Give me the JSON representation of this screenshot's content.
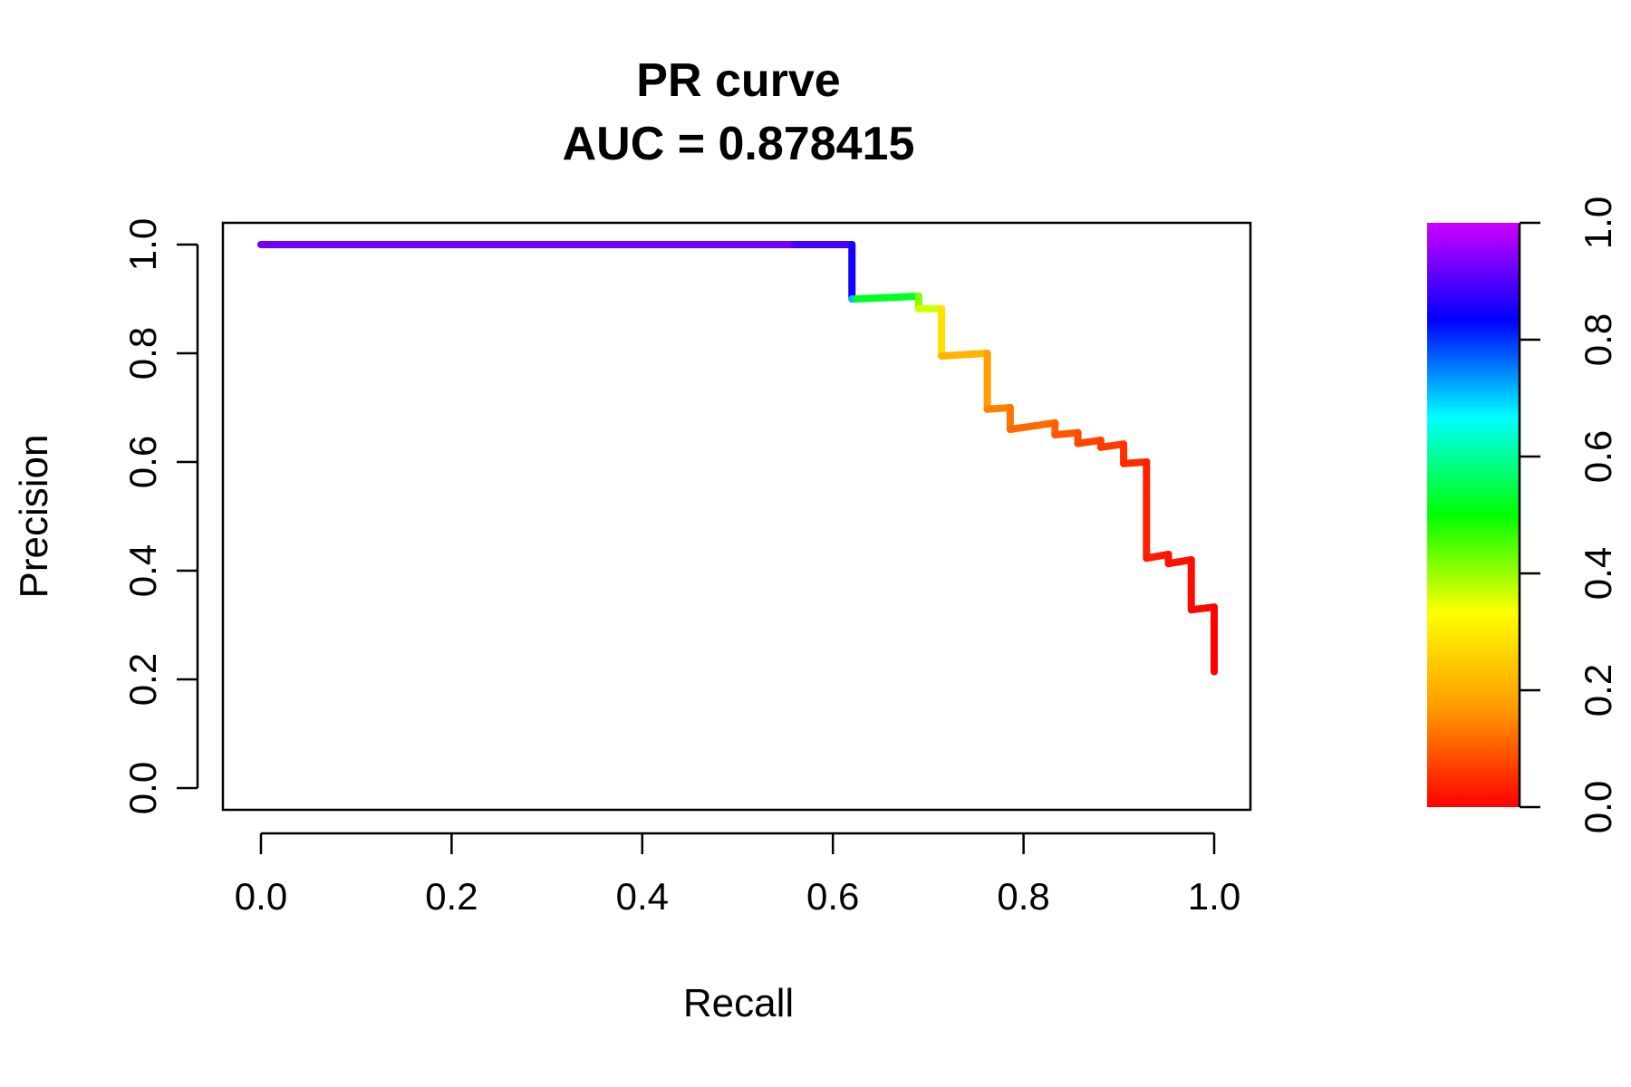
{
  "chart_data": {
    "type": "line",
    "title": "PR curve",
    "subtitle": "AUC = 0.878415",
    "xlabel": "Recall",
    "ylabel": "Precision",
    "xlim": [
      0.0,
      1.0
    ],
    "ylim": [
      0.0,
      1.0
    ],
    "xticks": [
      "0.0",
      "0.2",
      "0.4",
      "0.6",
      "0.8",
      "1.0"
    ],
    "yticks": [
      "0.0",
      "0.2",
      "0.4",
      "0.6",
      "0.8",
      "1.0"
    ],
    "grid": false,
    "legend": "none",
    "step": true,
    "series": [
      {
        "points": [
          {
            "x": 0.0,
            "y": 1.0,
            "t": 0.95
          },
          {
            "x": 0.56,
            "y": 1.0,
            "t": 0.9
          },
          {
            "x": 0.62,
            "y": 1.0,
            "t": 0.88
          },
          {
            "x": 0.62,
            "y": 0.9,
            "t": 0.82
          },
          {
            "x": 0.625,
            "y": 0.9,
            "t": 0.6
          },
          {
            "x": 0.69,
            "y": 0.905,
            "t": 0.45
          },
          {
            "x": 0.69,
            "y": 0.882,
            "t": 0.38
          },
          {
            "x": 0.714,
            "y": 0.882,
            "t": 0.35
          },
          {
            "x": 0.714,
            "y": 0.795,
            "t": 0.22
          },
          {
            "x": 0.762,
            "y": 0.8,
            "t": 0.2
          },
          {
            "x": 0.762,
            "y": 0.697,
            "t": 0.15
          },
          {
            "x": 0.786,
            "y": 0.7,
            "t": 0.13
          },
          {
            "x": 0.786,
            "y": 0.66,
            "t": 0.12
          },
          {
            "x": 0.833,
            "y": 0.672,
            "t": 0.11
          },
          {
            "x": 0.833,
            "y": 0.65,
            "t": 0.1
          },
          {
            "x": 0.857,
            "y": 0.654,
            "t": 0.09
          },
          {
            "x": 0.857,
            "y": 0.634,
            "t": 0.08
          },
          {
            "x": 0.881,
            "y": 0.64,
            "t": 0.07
          },
          {
            "x": 0.881,
            "y": 0.627,
            "t": 0.065
          },
          {
            "x": 0.905,
            "y": 0.633,
            "t": 0.06
          },
          {
            "x": 0.905,
            "y": 0.597,
            "t": 0.05
          },
          {
            "x": 0.929,
            "y": 0.6,
            "t": 0.04
          },
          {
            "x": 0.929,
            "y": 0.423,
            "t": 0.03
          },
          {
            "x": 0.952,
            "y": 0.43,
            "t": 0.025
          },
          {
            "x": 0.952,
            "y": 0.413,
            "t": 0.02
          },
          {
            "x": 0.976,
            "y": 0.42,
            "t": 0.015
          },
          {
            "x": 0.976,
            "y": 0.328,
            "t": 0.01
          },
          {
            "x": 1.0,
            "y": 0.333,
            "t": 0.005
          },
          {
            "x": 1.0,
            "y": 0.214,
            "t": 0.0
          }
        ]
      }
    ],
    "colorbar": {
      "range": [
        0.0,
        1.0
      ],
      "ticks": [
        "0.0",
        "0.2",
        "0.4",
        "0.6",
        "0.8",
        "1.0"
      ],
      "colormap": "rainbow",
      "stops": [
        "#ff0000",
        "#ff9900",
        "#ffff00",
        "#00ff00",
        "#00ffff",
        "#0000ff",
        "#cc00ff"
      ]
    }
  }
}
